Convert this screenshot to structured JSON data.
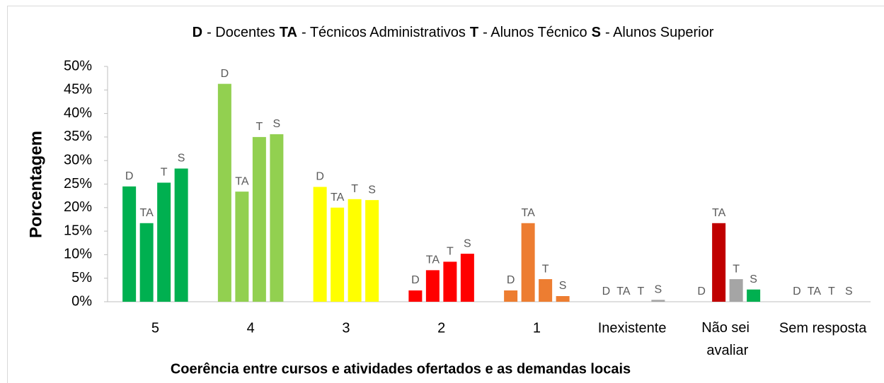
{
  "chart_data": {
    "type": "bar",
    "title": [
      {
        "key": "D",
        "text": "- Docentes"
      },
      {
        "key": "TA",
        "text": "- Técnicos Administrativos"
      },
      {
        "key": "T",
        "text": "- Alunos Técnico"
      },
      {
        "key": "S",
        "text": "- Alunos Superior"
      }
    ],
    "y_label": "Porcentagem",
    "x_label": "Coerência entre cursos e atividades ofertados e as demandas locais",
    "categories": [
      "5",
      "4",
      "3",
      "2",
      "1",
      "Inexistente",
      "Não sei avaliar",
      "Sem resposta"
    ],
    "series": [
      {
        "name": "D",
        "values": [
          24.5,
          46.3,
          24.4,
          2.4,
          2.4,
          0,
          0,
          0
        ]
      },
      {
        "name": "TA",
        "values": [
          16.7,
          23.4,
          20,
          6.7,
          16.7,
          0,
          16.7,
          0
        ]
      },
      {
        "name": "T",
        "values": [
          25.3,
          35,
          21.8,
          8.5,
          4.8,
          0,
          4.8,
          0
        ]
      },
      {
        "name": "S",
        "values": [
          28.3,
          35.6,
          21.6,
          10.2,
          1.2,
          0.4,
          2.6,
          0
        ]
      }
    ],
    "bar_colors": [
      [
        "#00b050",
        "#00b050",
        "#00b050",
        "#00b050"
      ],
      [
        "#92d050",
        "#92d050",
        "#92d050",
        "#92d050"
      ],
      [
        "#ffff00",
        "#ffff00",
        "#ffff00",
        "#ffff00"
      ],
      [
        "#ff0000",
        "#ff0000",
        "#ff0000",
        "#ff0000"
      ],
      [
        "#ed7d31",
        "#ed7d31",
        "#ed7d31",
        "#ed7d31"
      ],
      [
        "#a5a5a5",
        "#a5a5a5",
        "#a5a5a5",
        "#a5a5a5"
      ],
      [
        "#c00000",
        "#c00000",
        "#a5a5a5",
        "#00b050"
      ],
      [
        "#a5a5a5",
        "#a5a5a5",
        "#a5a5a5",
        "#a5a5a5"
      ]
    ],
    "ylim": [
      0,
      50
    ],
    "yticks": [
      {
        "value": 0,
        "label": "0%"
      },
      {
        "value": 5,
        "label": "5%"
      },
      {
        "value": 10,
        "label": "10%"
      },
      {
        "value": 15,
        "label": "15%"
      },
      {
        "value": 20,
        "label": "20%"
      },
      {
        "value": 25,
        "label": "25%"
      },
      {
        "value": 30,
        "label": "30%"
      },
      {
        "value": 35,
        "label": "35%"
      },
      {
        "value": 40,
        "label": "40%"
      },
      {
        "value": 45,
        "label": "45%"
      },
      {
        "value": 50,
        "label": "50%"
      }
    ],
    "grid": false
  }
}
